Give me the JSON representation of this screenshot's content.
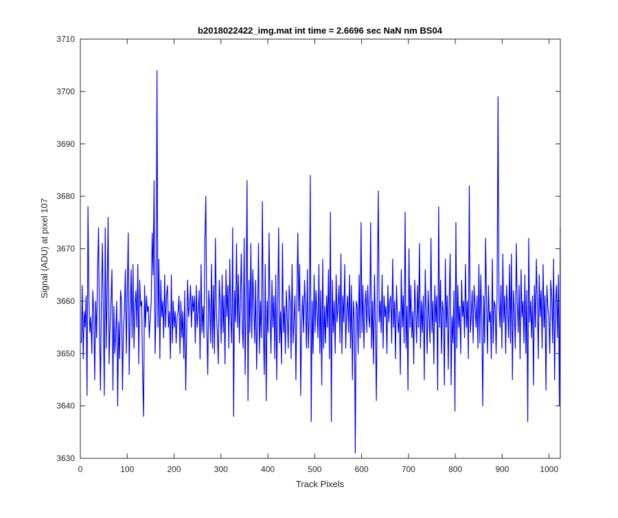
{
  "chart_data": {
    "type": "line",
    "title": "b2018022422_img.mat int time = 2.6696 sec  NaN nm BS04",
    "xlabel": "Track Pixels",
    "ylabel": "Signal (ADU) at pixel 107",
    "xlim": [
      0,
      1024
    ],
    "ylim": [
      3630,
      3710
    ],
    "xticks": [
      0,
      100,
      200,
      300,
      400,
      500,
      600,
      700,
      800,
      900,
      1000
    ],
    "yticks": [
      3630,
      3640,
      3650,
      3660,
      3670,
      3680,
      3690,
      3700,
      3710
    ],
    "grid": false,
    "legend": "none",
    "series_color": "#0000ff",
    "series": [
      {
        "x_start": 1,
        "x_step": 1,
        "values": [
          3652,
          3663,
          3649,
          3658,
          3655,
          3661,
          3642,
          3678,
          3660,
          3654,
          3657,
          3650,
          3662,
          3658,
          3645,
          3660,
          3653,
          3666,
          3674,
          3655,
          3643,
          3660,
          3671,
          3658,
          3642,
          3674,
          3651,
          3662,
          3676,
          3648,
          3655,
          3660,
          3666,
          3643,
          3659,
          3650,
          3654,
          3660,
          3640,
          3656,
          3649,
          3662,
          3660,
          3643,
          3655,
          3658,
          3666,
          3650,
          3662,
          3673,
          3646,
          3658,
          3666,
          3653,
          3667,
          3651,
          3659,
          3662,
          3655,
          3667,
          3648,
          3664,
          3659,
          3660,
          3646,
          3638,
          3663,
          3655,
          3661,
          3658,
          3659,
          3653,
          3657,
          3660,
          3673,
          3665,
          3683,
          3650,
          3658,
          3704,
          3655,
          3668,
          3649,
          3664,
          3657,
          3660,
          3653,
          3665,
          3655,
          3661,
          3663,
          3655,
          3658,
          3649,
          3665,
          3652,
          3660,
          3655,
          3658,
          3652,
          3657,
          3658,
          3661,
          3650,
          3660,
          3653,
          3658,
          3649,
          3662,
          3643,
          3654,
          3664,
          3657,
          3659,
          3663,
          3655,
          3661,
          3658,
          3661,
          3652,
          3663,
          3655,
          3658,
          3662,
          3649,
          3667,
          3654,
          3659,
          3653,
          3672,
          3680,
          3655,
          3646,
          3662,
          3659,
          3652,
          3667,
          3651,
          3663,
          3650,
          3672,
          3658,
          3654,
          3648,
          3664,
          3660,
          3652,
          3665,
          3654,
          3661,
          3648,
          3666,
          3657,
          3663,
          3651,
          3668,
          3657,
          3652,
          3674,
          3638,
          3662,
          3656,
          3671,
          3655,
          3665,
          3652,
          3660,
          3669,
          3655,
          3651,
          3672,
          3646,
          3660,
          3683,
          3641,
          3664,
          3654,
          3671,
          3653,
          3666,
          3660,
          3652,
          3664,
          3647,
          3657,
          3671,
          3650,
          3660,
          3653,
          3679,
          3655,
          3646,
          3667,
          3641,
          3660,
          3654,
          3673,
          3658,
          3650,
          3664,
          3655,
          3661,
          3649,
          3665,
          3645,
          3659,
          3674,
          3652,
          3658,
          3648,
          3671,
          3654,
          3659,
          3650,
          3662,
          3657,
          3651,
          3663,
          3660,
          3649,
          3667,
          3652,
          3656,
          3661,
          3645,
          3660,
          3673,
          3658,
          3667,
          3642,
          3656,
          3661,
          3654,
          3664,
          3659,
          3651,
          3666,
          3651,
          3657,
          3684,
          3637,
          3660,
          3650,
          3665,
          3654,
          3662,
          3658,
          3653,
          3667,
          3650,
          3662,
          3644,
          3668,
          3651,
          3659,
          3652,
          3661,
          3655,
          3666,
          3649,
          3677,
          3637,
          3664,
          3654,
          3660,
          3650,
          3665,
          3656,
          3659,
          3663,
          3652,
          3669,
          3650,
          3661,
          3656,
          3667,
          3651,
          3658,
          3661,
          3654,
          3665,
          3651,
          3663,
          3645,
          3660,
          3657,
          3631,
          3660,
          3659,
          3650,
          3665,
          3653,
          3675,
          3654,
          3663,
          3651,
          3659,
          3662,
          3654,
          3663,
          3657,
          3655,
          3675,
          3651,
          3660,
          3648,
          3665,
          3655,
          3641,
          3663,
          3681,
          3656,
          3660,
          3654,
          3665,
          3651,
          3661,
          3657,
          3659,
          3650,
          3663,
          3656,
          3660,
          3661,
          3652,
          3668,
          3655,
          3660,
          3649,
          3663,
          3657,
          3654,
          3658,
          3646,
          3666,
          3655,
          3661,
          3652,
          3677,
          3651,
          3659,
          3643,
          3670,
          3655,
          3663,
          3653,
          3658,
          3648,
          3664,
          3658,
          3652,
          3663,
          3655,
          3671,
          3651,
          3660,
          3654,
          3661,
          3645,
          3666,
          3658,
          3650,
          3662,
          3657,
          3652,
          3672,
          3654,
          3660,
          3648,
          3663,
          3656,
          3661,
          3643,
          3678,
          3655,
          3664,
          3650,
          3660,
          3658,
          3644,
          3668,
          3655,
          3661,
          3647,
          3660,
          3669,
          3644,
          3657,
          3652,
          3662,
          3639,
          3675,
          3651,
          3663,
          3655,
          3659,
          3650,
          3664,
          3657,
          3660,
          3653,
          3667,
          3655,
          3660,
          3649,
          3682,
          3654,
          3657,
          3662,
          3652,
          3663,
          3659,
          3655,
          3661,
          3651,
          3667,
          3652,
          3665,
          3657,
          3640,
          3661,
          3652,
          3672,
          3660,
          3650,
          3663,
          3656,
          3658,
          3649,
          3668,
          3652,
          3660,
          3659,
          3650,
          3661,
          3699,
          3660,
          3655,
          3663,
          3651,
          3669,
          3656,
          3661,
          3650,
          3663,
          3658,
          3653,
          3667,
          3652,
          3669,
          3645,
          3662,
          3658,
          3651,
          3671,
          3660,
          3654,
          3663,
          3649,
          3666,
          3657,
          3660,
          3652,
          3665,
          3650,
          3662,
          3637,
          3672,
          3656,
          3660,
          3653,
          3661,
          3644,
          3663,
          3655,
          3668,
          3660,
          3649,
          3665,
          3657,
          3662,
          3651,
          3667,
          3655,
          3661,
          3643,
          3663,
          3659,
          3657,
          3650,
          3664,
          3661,
          3652,
          3668,
          3645,
          3660,
          3663,
          3653,
          3665,
          3640,
          3674
        ]
      }
    ]
  }
}
